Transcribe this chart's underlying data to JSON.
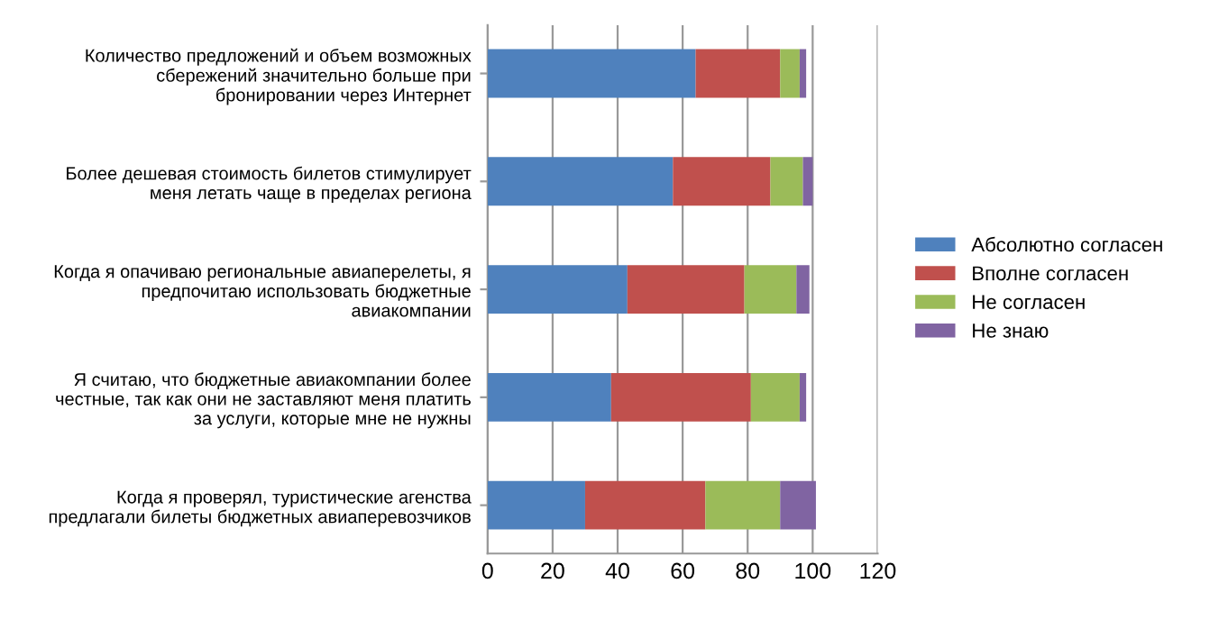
{
  "chart_data": {
    "type": "bar",
    "orientation": "horizontal",
    "stacked": true,
    "categories": [
      "Количество предложений и объем возможных\nсбережений значительно больше при\nбронировании через Интернет",
      "Более дешевая стоимость билетов стимулирует\nменя летать чаще в пределах региона",
      "Когда я опачиваю региональные авиаперелеты, я\nпредпочитаю использовать бюджетные\nавиакомпании",
      "Я считаю, что бюджетные авиакомпании более\nчестные, так как они не заставляют меня платить\nза услуги, которые мне не нужны",
      "Когда я проверял, туристические агенства\nпредлагали билеты бюджетных авиаперевозчиков"
    ],
    "series": [
      {
        "name": "Абсолютно согласен",
        "color": "#4f81bd",
        "values": [
          64,
          57,
          43,
          38,
          30
        ]
      },
      {
        "name": "Вполне согласен",
        "color": "#c0504d",
        "values": [
          26,
          30,
          36,
          43,
          37
        ]
      },
      {
        "name": "Не согласен",
        "color": "#9bbb59",
        "values": [
          6,
          10,
          16,
          15,
          23
        ]
      },
      {
        "name": "Не знаю",
        "color": "#8064a2",
        "values": [
          2,
          3,
          4,
          2,
          11
        ]
      }
    ],
    "xlim": [
      0,
      120
    ],
    "xticks": [
      0,
      20,
      40,
      60,
      80,
      100,
      120
    ],
    "grid": "x",
    "legend": "right"
  }
}
